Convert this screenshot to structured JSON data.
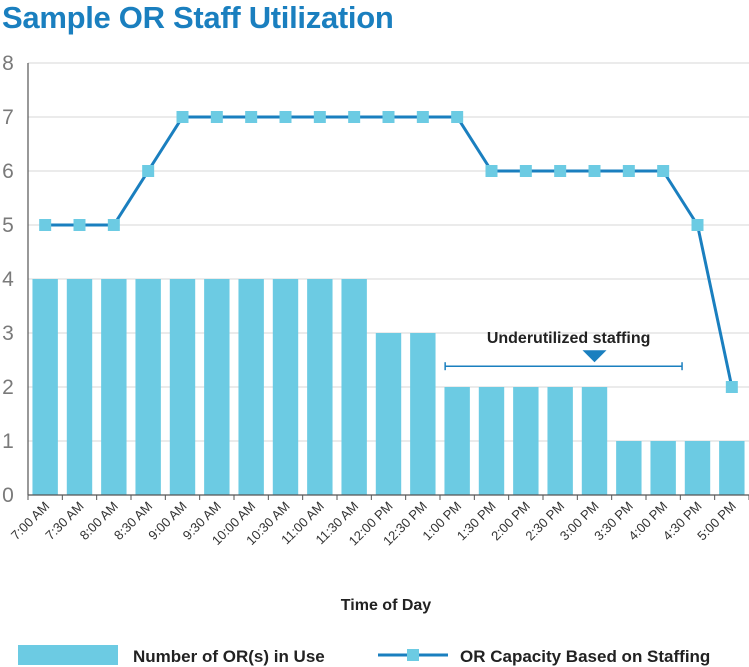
{
  "chart_data": {
    "type": "bar",
    "title": "Sample OR Staff Utilization",
    "xlabel": "Time of Day",
    "ylabel": "",
    "ylim": [
      0,
      8
    ],
    "yticks": [
      "0",
      "1",
      "2",
      "3",
      "4",
      "5",
      "6",
      "7",
      "8"
    ],
    "grid": true,
    "legend_position": "bottom",
    "categories": [
      "7:00 AM",
      "7:30 AM",
      "8:00 AM",
      "8:30 AM",
      "9:00 AM",
      "9:30 AM",
      "10:00 AM",
      "10:30 AM",
      "11:00 AM",
      "11:30 AM",
      "12:00 PM",
      "12:30 PM",
      "1:00 PM",
      "1:30 PM",
      "2:00 PM",
      "2:30 PM",
      "3:00 PM",
      "3:30 PM",
      "4:00 PM",
      "4:30 PM",
      "5:00 PM"
    ],
    "series": [
      {
        "name": "Number of OR(s) in Use",
        "type": "bar",
        "color": "#6ccbe3",
        "values": [
          4,
          4,
          4,
          4,
          4,
          4,
          4,
          4,
          4,
          4,
          3,
          3,
          2,
          2,
          2,
          2,
          2,
          1,
          1,
          1,
          1
        ]
      },
      {
        "name": "OR Capacity Based on Staffing",
        "type": "line",
        "color": "#1a7fbf",
        "marker_color": "#6ccbe3",
        "values": [
          5,
          5,
          5,
          6,
          7,
          7,
          7,
          7,
          7,
          7,
          7,
          7,
          7,
          6,
          6,
          6,
          6,
          6,
          6,
          5,
          2
        ]
      }
    ],
    "annotation": {
      "text": "Underutilized staffing",
      "from": "1:00 PM",
      "to": "4:30 PM",
      "pointer_at": "3:00 PM",
      "y": 2.2
    }
  }
}
